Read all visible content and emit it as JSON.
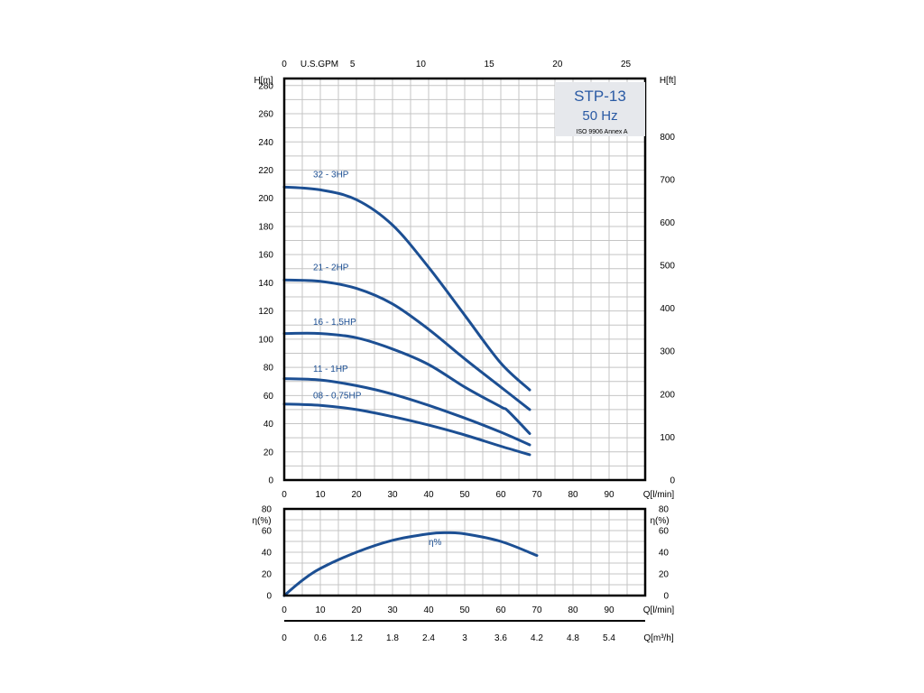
{
  "chart_data": [
    {
      "type": "line",
      "legend_box": {
        "title": "STP-13",
        "subtitle": "50 Hz",
        "note": "ISO 9906 Annex A"
      },
      "top_axis": {
        "label": "U.S.GPM",
        "ticks": [
          "0",
          "5",
          "10",
          "15",
          "20",
          "25"
        ],
        "values": [
          0,
          5,
          10,
          15,
          20,
          25
        ]
      },
      "ylabel_left": "H[m]",
      "ylabel_right": "H[ft]",
      "xlabel": "Q[l/min]",
      "xlim": [
        0,
        100
      ],
      "ylim": [
        0,
        285
      ],
      "y_ft_lim": [
        0,
        935
      ],
      "grid": true,
      "x_ticks": [
        "0",
        "10",
        "20",
        "30",
        "40",
        "50",
        "60",
        "70",
        "80",
        "90"
      ],
      "x_tick_values": [
        0,
        10,
        20,
        30,
        40,
        50,
        60,
        70,
        80,
        90
      ],
      "y_ticks": [
        "0",
        "20",
        "40",
        "60",
        "80",
        "100",
        "120",
        "140",
        "160",
        "180",
        "200",
        "220",
        "240",
        "260",
        "280"
      ],
      "y_tick_values": [
        0,
        20,
        40,
        60,
        80,
        100,
        120,
        140,
        160,
        180,
        200,
        220,
        240,
        260,
        280
      ],
      "y_ft_ticks": [
        "0",
        "100",
        "200",
        "300",
        "400",
        "500",
        "600",
        "700",
        "800"
      ],
      "y_ft_tick_values": [
        0,
        100,
        200,
        300,
        400,
        500,
        600,
        700,
        800
      ],
      "color": "#1c4f93",
      "series": [
        {
          "name": "32 - 3HP",
          "label_at": [
            8,
            215
          ],
          "x": [
            0,
            10,
            20,
            30,
            40,
            50,
            60,
            68
          ],
          "y": [
            208,
            206,
            199,
            181,
            151,
            117,
            83,
            64
          ]
        },
        {
          "name": "21 - 2HP",
          "label_at": [
            8,
            149
          ],
          "x": [
            0,
            10,
            20,
            30,
            40,
            50,
            60,
            68
          ],
          "y": [
            142,
            141,
            136,
            125,
            107,
            86,
            66,
            50
          ]
        },
        {
          "name": "16 - 1,5HP",
          "label_at": [
            8,
            110
          ],
          "x": [
            0,
            10,
            20,
            30,
            40,
            50,
            60,
            62,
            68
          ],
          "y": [
            104,
            104,
            101,
            93,
            82,
            66,
            52,
            49,
            33
          ]
        },
        {
          "name": "11 - 1HP",
          "label_at": [
            8,
            77
          ],
          "x": [
            0,
            10,
            20,
            30,
            40,
            50,
            60,
            68
          ],
          "y": [
            72,
            71,
            67,
            61,
            53,
            44,
            34,
            25
          ]
        },
        {
          "name": "08 - 0,75HP",
          "label_at": [
            8,
            58
          ],
          "x": [
            0,
            10,
            20,
            30,
            40,
            50,
            60,
            68
          ],
          "y": [
            54,
            53,
            50,
            45,
            39,
            32,
            24,
            18
          ]
        }
      ]
    },
    {
      "type": "line",
      "ylabel_left": "η(%)",
      "ylabel_right": "η(%)",
      "xlabel": "Q[l/min]",
      "xlim": [
        0,
        100
      ],
      "ylim": [
        0,
        80
      ],
      "grid": true,
      "x_ticks": [
        "0",
        "10",
        "20",
        "30",
        "40",
        "50",
        "60",
        "70",
        "80",
        "90"
      ],
      "x_tick_values": [
        0,
        10,
        20,
        30,
        40,
        50,
        60,
        70,
        80,
        90
      ],
      "y_ticks": [
        "0",
        "20",
        "40",
        "60",
        "80"
      ],
      "y_tick_values": [
        0,
        20,
        40,
        60,
        80
      ],
      "color": "#1c4f93",
      "series": [
        {
          "name": "η%",
          "label_at": [
            40,
            50
          ],
          "x": [
            0,
            5,
            10,
            20,
            30,
            40,
            45,
            50,
            60,
            70
          ],
          "y": [
            0,
            14,
            25,
            40,
            51,
            57,
            58,
            57,
            50,
            37
          ]
        }
      ]
    },
    {
      "type": "axis",
      "xlabel": "Q[m³/h]",
      "xlim": [
        0,
        6
      ],
      "x_ticks": [
        "0",
        "0.6",
        "1.2",
        "1.8",
        "2.4",
        "3",
        "3.6",
        "4.2",
        "4.8",
        "5.4"
      ],
      "x_tick_values": [
        0,
        0.6,
        1.2,
        1.8,
        2.4,
        3,
        3.6,
        4.2,
        4.8,
        5.4
      ]
    }
  ]
}
